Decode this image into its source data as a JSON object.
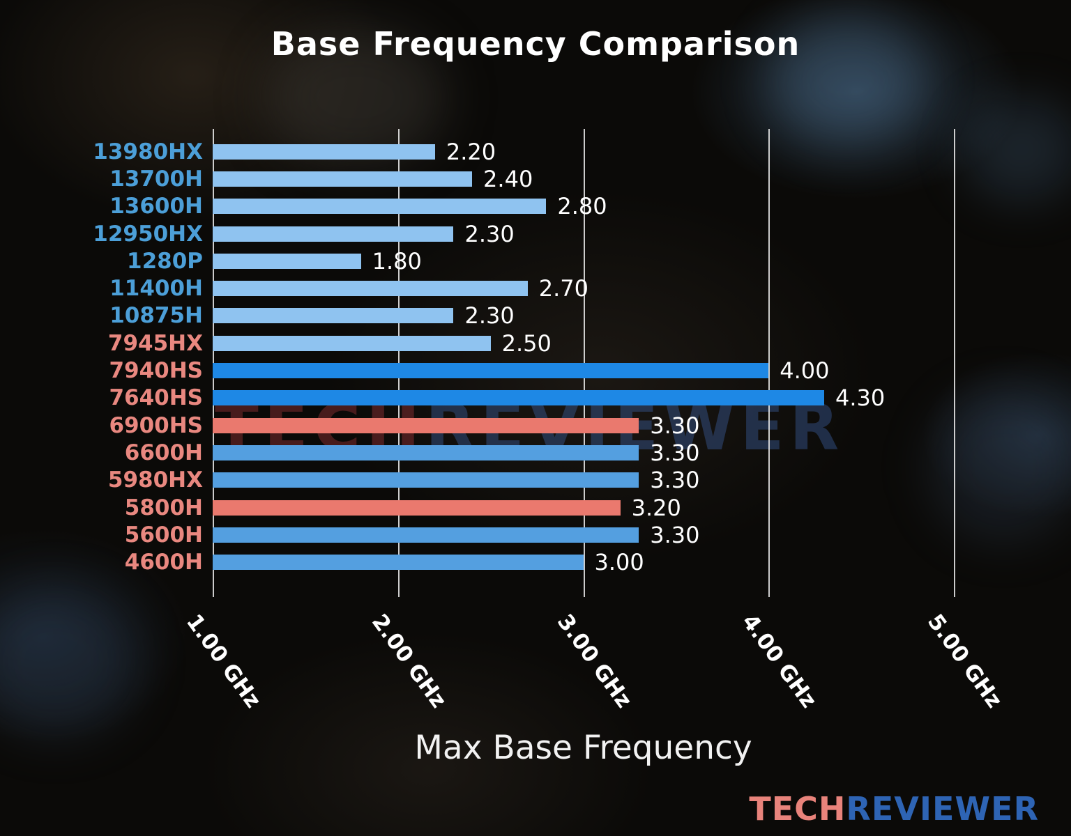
{
  "title": "Base Frequency Comparison",
  "watermark": {
    "part1": "TECH",
    "part2": "REVIEWER"
  },
  "brand": {
    "part1": "TECH",
    "part2": "REVIEWER"
  },
  "colors": {
    "intel_label": "#4C9FD8",
    "amd_label": "#E98880",
    "bar_light": "#8FC3F0",
    "bar_mid": "#549FE0",
    "bar_vivid": "#1E88E5",
    "bar_salmon": "#EA796E",
    "value_text": "#FFFFFF",
    "gridline": "#EEEEEE"
  },
  "chart_data": {
    "type": "bar",
    "orientation": "horizontal",
    "title": "Base Frequency Comparison",
    "xlabel": "Max Base Frequency",
    "ylabel": "",
    "x_range_ghz": [
      1.0,
      5.0
    ],
    "x_ticks": [
      "1.00 GHz",
      "2.00 GHz",
      "3.00 GHz",
      "4.00 GHz",
      "5.00 GHz"
    ],
    "x_tick_values": [
      1.0,
      2.0,
      3.0,
      4.0,
      5.0
    ],
    "grid": true,
    "rows": [
      {
        "label": "13980HX",
        "value": 2.2,
        "value_label": "2.20",
        "label_group": "intel",
        "bar": "light"
      },
      {
        "label": "13700H",
        "value": 2.4,
        "value_label": "2.40",
        "label_group": "intel",
        "bar": "light"
      },
      {
        "label": "13600H",
        "value": 2.8,
        "value_label": "2.80",
        "label_group": "intel",
        "bar": "light"
      },
      {
        "label": "12950HX",
        "value": 2.3,
        "value_label": "2.30",
        "label_group": "intel",
        "bar": "light"
      },
      {
        "label": "1280P",
        "value": 1.8,
        "value_label": "1.80",
        "label_group": "intel",
        "bar": "light"
      },
      {
        "label": "11400H",
        "value": 2.7,
        "value_label": "2.70",
        "label_group": "intel",
        "bar": "light"
      },
      {
        "label": "10875H",
        "value": 2.3,
        "value_label": "2.30",
        "label_group": "intel",
        "bar": "light"
      },
      {
        "label": "7945HX",
        "value": 2.5,
        "value_label": "2.50",
        "label_group": "amd",
        "bar": "light"
      },
      {
        "label": "7940HS",
        "value": 4.0,
        "value_label": "4.00",
        "label_group": "amd",
        "bar": "vivid"
      },
      {
        "label": "7640HS",
        "value": 4.3,
        "value_label": "4.30",
        "label_group": "amd",
        "bar": "vivid"
      },
      {
        "label": "6900HS",
        "value": 3.3,
        "value_label": "3.30",
        "label_group": "amd",
        "bar": "salmon"
      },
      {
        "label": "6600H",
        "value": 3.3,
        "value_label": "3.30",
        "label_group": "amd",
        "bar": "mid"
      },
      {
        "label": "5980HX",
        "value": 3.3,
        "value_label": "3.30",
        "label_group": "amd",
        "bar": "mid"
      },
      {
        "label": "5800H",
        "value": 3.2,
        "value_label": "3.20",
        "label_group": "amd",
        "bar": "salmon"
      },
      {
        "label": "5600H",
        "value": 3.3,
        "value_label": "3.30",
        "label_group": "amd",
        "bar": "mid"
      },
      {
        "label": "4600H",
        "value": 3.0,
        "value_label": "3.00",
        "label_group": "amd",
        "bar": "mid"
      }
    ]
  }
}
